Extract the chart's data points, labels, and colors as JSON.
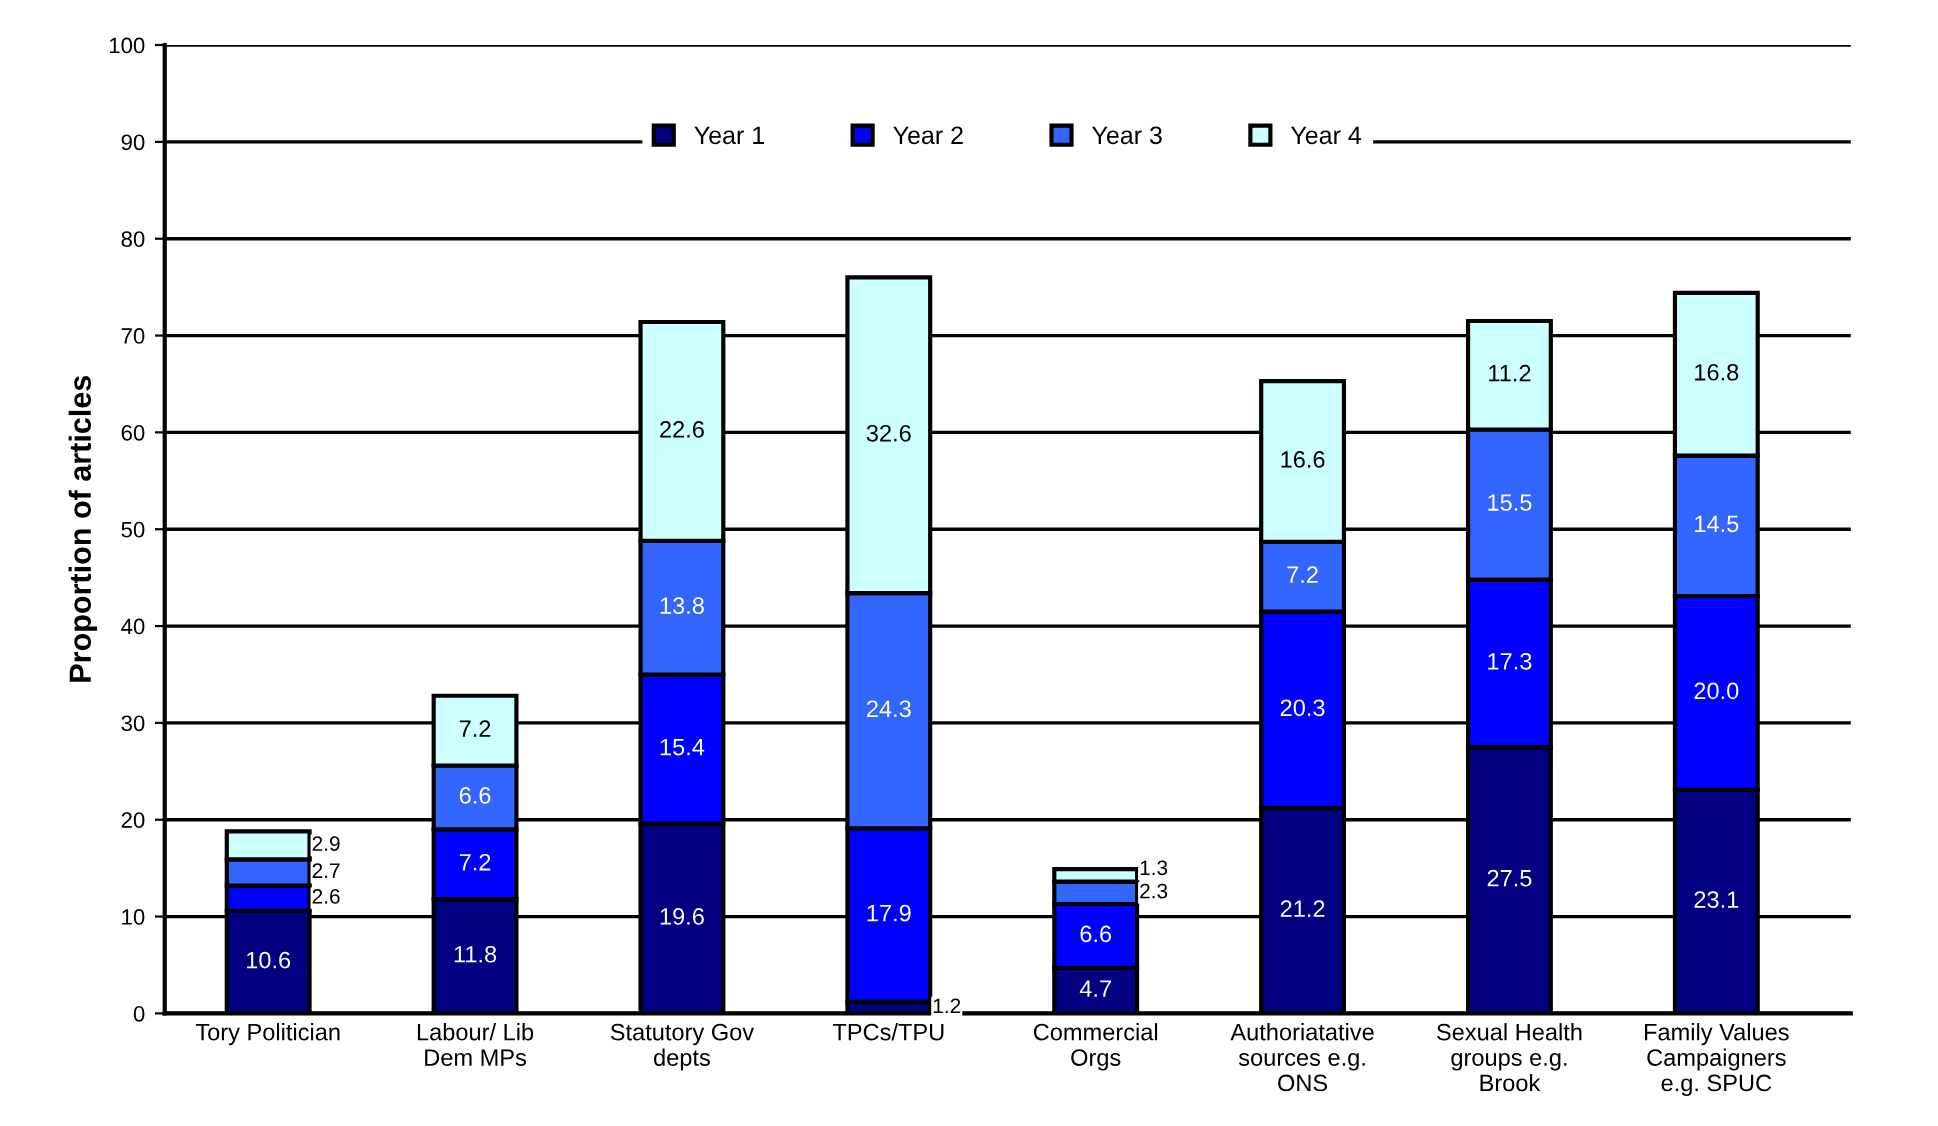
{
  "chart_data": {
    "type": "bar",
    "stacked": true,
    "ylabel": "Proportion of articles",
    "categories": [
      "Tory Politician",
      "Labour/ Lib\nDem MPs",
      "Statutory Gov\ndepts",
      "TPCs/TPU",
      "Commercial\nOrgs",
      "Authoriatative\nsources e.g.\nONS",
      "Sexual Health\ngroups e.g.\nBrook",
      "Family Values\nCampaigners\ne.g. SPUC"
    ],
    "series": [
      {
        "name": "Year 1",
        "color": "#000080",
        "values": [
          10.6,
          11.8,
          19.6,
          1.2,
          4.7,
          21.2,
          27.5,
          23.1
        ],
        "value_labels": [
          "10.6",
          "11.8",
          "19.6",
          "1.2",
          "4.7",
          "21.2",
          "27.5",
          "23.1"
        ]
      },
      {
        "name": "Year 2",
        "color": "#0000ff",
        "values": [
          2.6,
          7.2,
          15.4,
          17.9,
          6.6,
          20.3,
          17.3,
          20.0
        ],
        "value_labels": [
          "2.6",
          "7.2",
          "15.4",
          "17.9",
          "6.6",
          "20.3",
          "17.3",
          "20.0"
        ]
      },
      {
        "name": "Year 3",
        "color": "#3366ff",
        "values": [
          2.7,
          6.6,
          13.8,
          24.3,
          2.3,
          7.2,
          15.5,
          14.5
        ],
        "value_labels": [
          "2.7",
          "6.6",
          "13.8",
          "24.3",
          "2.3",
          "7.2",
          "15.5",
          "14.5"
        ]
      },
      {
        "name": "Year 4",
        "color": "#ccffff",
        "values": [
          2.9,
          7.2,
          22.6,
          32.6,
          1.3,
          16.6,
          11.2,
          16.8
        ],
        "value_labels": [
          "2.9",
          "7.2",
          "22.6",
          "32.6",
          "1.3",
          "16.6",
          "11.2",
          "16.8"
        ]
      }
    ],
    "ylim": [
      0,
      100
    ],
    "yticks": [
      0,
      10,
      20,
      30,
      40,
      50,
      60,
      70,
      80,
      90,
      100
    ],
    "grid": "y",
    "legend": "top"
  }
}
